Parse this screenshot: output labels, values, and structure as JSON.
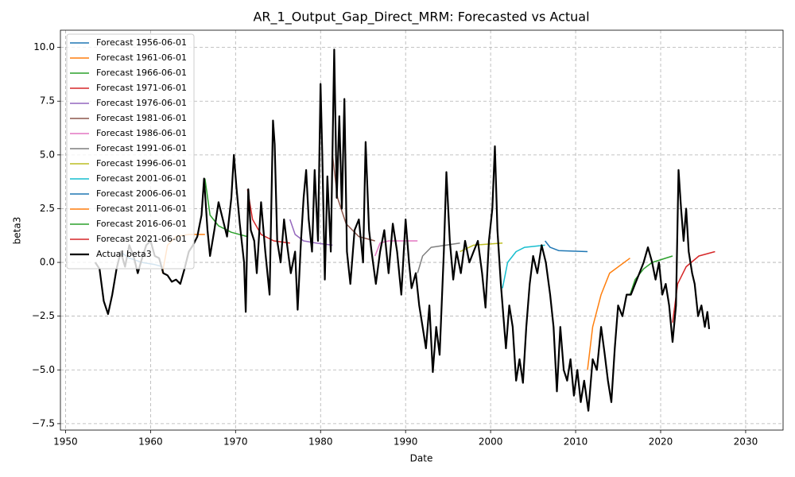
{
  "chart_data": {
    "type": "line",
    "title": "AR_1_Output_Gap_Direct_MRM: Forecasted vs Actual",
    "x_label": "Date",
    "y_label": "beta3",
    "xlim": [
      1949.4,
      2034.4
    ],
    "ylim": [
      -7.8,
      10.8
    ],
    "xticks": [
      1950,
      1960,
      1970,
      1980,
      1990,
      2000,
      2010,
      2020,
      2030
    ],
    "yticks": [
      {
        "value": -7.5,
        "label": "−7.5"
      },
      {
        "value": -5,
        "label": "−5.0"
      },
      {
        "value": -2.5,
        "label": "−2.5"
      },
      {
        "value": 0,
        "label": "0.0"
      },
      {
        "value": 2.5,
        "label": "2.5"
      },
      {
        "value": 5,
        "label": "5.0"
      },
      {
        "value": 7.5,
        "label": "7.5"
      },
      {
        "value": 10,
        "label": "10.0"
      }
    ],
    "grid": true,
    "legend": "upper-left",
    "series": [
      {
        "name": "Forecast 1956-06-01",
        "color": "#1f77b4",
        "width": 1.5,
        "x": [
          1956.4,
          1957.5,
          1959,
          1960.5,
          1961.4
        ],
        "values": [
          0.5,
          0.2,
          0.0,
          -0.1,
          -0.2
        ]
      },
      {
        "name": "Forecast 1961-06-01",
        "color": "#ff7f0e",
        "width": 1.5,
        "x": [
          1961.4,
          1962,
          1963,
          1964.5,
          1966.4
        ],
        "values": [
          -0.5,
          0.8,
          1.2,
          1.3,
          1.3
        ]
      },
      {
        "name": "Forecast 1966-06-01",
        "color": "#2ca02c",
        "width": 1.5,
        "x": [
          1966.4,
          1967,
          1968,
          1969.5,
          1971.4
        ],
        "values": [
          3.9,
          2.2,
          1.7,
          1.4,
          1.2
        ]
      },
      {
        "name": "Forecast 1971-06-01",
        "color": "#d62728",
        "width": 1.5,
        "x": [
          1971.4,
          1972,
          1973,
          1974.5,
          1976.4
        ],
        "values": [
          3.4,
          2.0,
          1.3,
          1.0,
          0.9
        ]
      },
      {
        "name": "Forecast 1976-06-01",
        "color": "#9467bd",
        "width": 1.5,
        "x": [
          1976.4,
          1977,
          1978,
          1979.5,
          1981.4
        ],
        "values": [
          2.0,
          1.3,
          1.0,
          0.9,
          0.8
        ]
      },
      {
        "name": "Forecast 1981-06-01",
        "color": "#8c564b",
        "width": 1.5,
        "x": [
          1981.4,
          1982,
          1983,
          1984.5,
          1986.4
        ],
        "values": [
          5.0,
          3.0,
          1.8,
          1.2,
          1.0
        ]
      },
      {
        "name": "Forecast 1986-06-01",
        "color": "#e377c2",
        "width": 1.5,
        "x": [
          1986.4,
          1987,
          1988,
          1991.4
        ],
        "values": [
          0.3,
          0.9,
          1.0,
          1.0
        ]
      },
      {
        "name": "Forecast 1991-06-01",
        "color": "#7f7f7f",
        "width": 1.5,
        "x": [
          1991.4,
          1992,
          1993,
          1996.4
        ],
        "values": [
          -0.5,
          0.3,
          0.7,
          0.9
        ]
      },
      {
        "name": "Forecast 1996-06-01",
        "color": "#bcbd22",
        "width": 1.5,
        "x": [
          1996.4,
          1998,
          2001.4
        ],
        "values": [
          0.5,
          0.8,
          0.9
        ]
      },
      {
        "name": "Forecast 2001-06-01",
        "color": "#17becf",
        "width": 1.5,
        "x": [
          2001.4,
          2002,
          2003,
          2004,
          2006.4
        ],
        "values": [
          -1.2,
          0.0,
          0.5,
          0.7,
          0.8
        ]
      },
      {
        "name": "Forecast 2006-06-01",
        "color": "#1f77b4",
        "width": 1.5,
        "x": [
          2006.4,
          2007,
          2008,
          2011.4
        ],
        "values": [
          1.0,
          0.7,
          0.55,
          0.5
        ]
      },
      {
        "name": "Forecast 2011-06-01",
        "color": "#ff7f0e",
        "width": 1.5,
        "x": [
          2011.4,
          2012,
          2013,
          2014,
          2016.4
        ],
        "values": [
          -5.0,
          -3.0,
          -1.5,
          -0.5,
          0.2
        ]
      },
      {
        "name": "Forecast 2016-06-01",
        "color": "#2ca02c",
        "width": 1.5,
        "x": [
          2016.4,
          2017,
          2018,
          2019,
          2021.4
        ],
        "values": [
          -1.5,
          -0.8,
          -0.3,
          0.0,
          0.3
        ]
      },
      {
        "name": "Forecast 2021-06-01",
        "color": "#d62728",
        "width": 1.5,
        "x": [
          2021.4,
          2022,
          2023,
          2024.5,
          2026.4
        ],
        "values": [
          -2.8,
          -1.0,
          -0.2,
          0.3,
          0.5
        ]
      },
      {
        "name": "Actual beta3",
        "color": "#000000",
        "width": 2.2,
        "x": [
          1953.5,
          1954,
          1954.5,
          1955,
          1955.5,
          1956,
          1956.5,
          1957,
          1957.5,
          1958,
          1958.5,
          1959,
          1959.5,
          1960,
          1960.5,
          1961,
          1961.5,
          1962,
          1962.5,
          1963,
          1963.5,
          1964,
          1964.5,
          1965,
          1965.5,
          1966,
          1966.3,
          1966.7,
          1967,
          1967.5,
          1968,
          1968.5,
          1969,
          1969.5,
          1969.8,
          1970.1,
          1970.5,
          1971,
          1971.2,
          1971.5,
          1971.8,
          1972.2,
          1972.5,
          1973,
          1973.5,
          1974,
          1974.4,
          1974.6,
          1974.9,
          1975.3,
          1975.7,
          1976,
          1976.5,
          1977,
          1977.3,
          1977.7,
          1978,
          1978.3,
          1978.6,
          1979,
          1979.3,
          1979.7,
          1980,
          1980.2,
          1980.5,
          1980.8,
          1981.2,
          1981.6,
          1981.9,
          1982.2,
          1982.5,
          1982.8,
          1983.1,
          1983.5,
          1984,
          1984.5,
          1985,
          1985.3,
          1985.7,
          1986,
          1986.5,
          1987,
          1987.5,
          1988,
          1988.5,
          1989,
          1989.5,
          1990,
          1990.4,
          1990.7,
          1991.2,
          1991.6,
          1992,
          1992.4,
          1992.8,
          1993.2,
          1993.6,
          1994,
          1994.5,
          1994.8,
          1995.2,
          1995.6,
          1996,
          1996.5,
          1997,
          1997.5,
          1998,
          1998.5,
          1999,
          1999.4,
          1999.8,
          2000.2,
          2000.5,
          2000.8,
          2001.2,
          2001.5,
          2001.8,
          2002.2,
          2002.6,
          2003,
          2003.4,
          2003.8,
          2004.2,
          2004.6,
          2005,
          2005.5,
          2006,
          2006.5,
          2007,
          2007.4,
          2007.8,
          2008.2,
          2008.6,
          2009,
          2009.4,
          2009.8,
          2010.2,
          2010.6,
          2011,
          2011.5,
          2012,
          2012.5,
          2013,
          2013.4,
          2013.8,
          2014.2,
          2014.6,
          2015,
          2015.5,
          2016,
          2016.5,
          2017,
          2017.5,
          2018,
          2018.5,
          2019,
          2019.4,
          2019.8,
          2020.2,
          2020.6,
          2021,
          2021.4,
          2021.8,
          2022.1,
          2022.4,
          2022.7,
          2023,
          2023.3,
          2023.7,
          2024,
          2024.4,
          2024.8,
          2025.2,
          2025.5,
          2025.7
        ],
        "values": [
          0,
          -0.3,
          -1.8,
          -2.4,
          -1.5,
          -0.3,
          0.5,
          -0.2,
          0.8,
          0.3,
          -0.5,
          0.2,
          0.8,
          1.0,
          0.3,
          0.2,
          -0.5,
          -0.6,
          -0.9,
          -0.8,
          -1.0,
          -0.3,
          0.5,
          0.8,
          1.2,
          2.2,
          3.9,
          1.5,
          0.3,
          1.5,
          2.8,
          2.0,
          1.2,
          3.0,
          5.0,
          3.5,
          1.8,
          0.0,
          -2.3,
          3.4,
          1.5,
          1.0,
          -0.5,
          2.8,
          0.5,
          -1.5,
          6.6,
          5.5,
          1.0,
          0.0,
          2.0,
          1.0,
          -0.5,
          0.5,
          -2.2,
          1.0,
          3.0,
          4.3,
          2.0,
          0.5,
          4.3,
          1.0,
          8.3,
          5.0,
          -0.8,
          4.0,
          0.5,
          9.9,
          3.0,
          6.8,
          2.5,
          7.6,
          0.5,
          -1.0,
          1.5,
          2.0,
          0.0,
          5.6,
          1.5,
          0.5,
          -1.0,
          0.5,
          1.5,
          -0.5,
          1.8,
          0.5,
          -1.5,
          2.0,
          0.0,
          -1.2,
          -0.5,
          -2.0,
          -3.0,
          -4.0,
          -2.0,
          -5.1,
          -3.0,
          -4.3,
          0.5,
          4.2,
          1.0,
          -0.8,
          0.5,
          -0.5,
          1.0,
          0.0,
          0.5,
          1.0,
          -0.5,
          -2.1,
          1.0,
          2.5,
          5.4,
          1.5,
          -1.0,
          -2.5,
          -4.0,
          -2.0,
          -3.0,
          -5.5,
          -4.5,
          -5.6,
          -3.0,
          -1.0,
          0.3,
          -0.5,
          0.8,
          0.0,
          -1.5,
          -3.0,
          -6.0,
          -3.0,
          -5.0,
          -5.5,
          -4.5,
          -6.2,
          -5.0,
          -6.5,
          -5.5,
          -6.9,
          -4.5,
          -5.0,
          -3.0,
          -4.2,
          -5.5,
          -6.5,
          -4.0,
          -2.0,
          -2.5,
          -1.5,
          -1.5,
          -1.0,
          -0.5,
          0.0,
          0.7,
          0.0,
          -0.8,
          0.0,
          -1.5,
          -1.0,
          -2.0,
          -3.7,
          -2.0,
          4.3,
          2.5,
          1.0,
          2.5,
          0.5,
          -0.5,
          -1.0,
          -2.5,
          -2.0,
          -3.0,
          -2.3,
          -3.1
        ]
      }
    ]
  }
}
